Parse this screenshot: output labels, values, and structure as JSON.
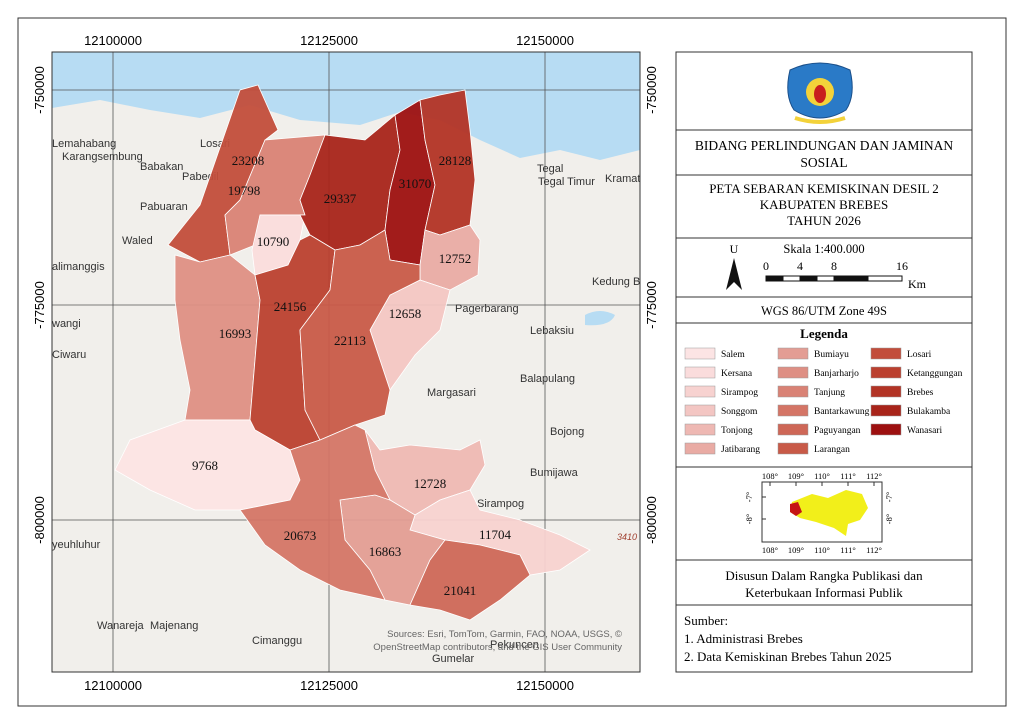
{
  "map": {
    "x_ticks": [
      12100000,
      12125000,
      12150000
    ],
    "y_ticks": [
      -750000,
      -775000,
      -800000
    ],
    "districts": [
      {
        "value": 23208,
        "color": "#c24d3b"
      },
      {
        "value": 19798,
        "color": "#d98275"
      },
      {
        "value": 10790,
        "color": "#fadcdc"
      },
      {
        "value": 29337,
        "color": "#a8241a"
      },
      {
        "value": 31070,
        "color": "#9d1010"
      },
      {
        "value": 28128,
        "color": "#b23325"
      },
      {
        "value": 12752,
        "color": "#e9aba4"
      },
      {
        "value": 12658,
        "color": "#f3c6c3"
      },
      {
        "value": 16993,
        "color": "#de8f84"
      },
      {
        "value": 24156,
        "color": "#bb402f"
      },
      {
        "value": 22113,
        "color": "#c85a48"
      },
      {
        "value": 9768,
        "color": "#fce4e4"
      },
      {
        "value": 12728,
        "color": "#eeb8b3"
      },
      {
        "value": 11704,
        "color": "#f7d2d0"
      },
      {
        "value": 16863,
        "color": "#e39d94"
      },
      {
        "value": 20673,
        "color": "#d47566"
      },
      {
        "value": 21041,
        "color": "#ce6757"
      }
    ],
    "places": [
      "Lemahabang",
      "Karangsembung",
      "Losari",
      "Babakan",
      "Pabedil",
      "Pabuaran",
      "Waled",
      "alimanggis",
      "wangi",
      "Ciwaru",
      "yeuhluhur",
      "Wanareja",
      "Majenang",
      "Cimanggu",
      "Gumelar",
      "Pekuncen",
      "Tegal",
      "Tegal Timur",
      "Kramat",
      "Kedung B",
      "Pagerbarang",
      "Lebaksiu",
      "Margasari",
      "Balapulang",
      "Bojong",
      "Bumijawa",
      "Sirampog",
      "3410 m"
    ],
    "attribution": [
      "Sources: Esri, TomTom, Garmin, FAO, NOAA, USGS, ©",
      "OpenStreetMap contributors, and the GIS User Community"
    ]
  },
  "panel": {
    "agency_lines": [
      "BIDANG PERLINDUNGAN DAN JAMINAN",
      "SOSIAL"
    ],
    "title_lines": [
      "PETA SEBARAN KEMISKINAN DESIL 2",
      "KABUPATEN BREBES",
      "TAHUN 2026"
    ],
    "north": "U",
    "scale": "Skala 1:400.000",
    "scale_ticks": [
      0,
      4,
      8,
      16
    ],
    "scale_unit": "Km",
    "projection": "WGS 86/UTM Zone 49S",
    "legend_title": "Legenda",
    "legend": [
      {
        "name": "Salem",
        "color": "#fce4e4"
      },
      {
        "name": "Kersana",
        "color": "#fadcdc"
      },
      {
        "name": "Sirampog",
        "color": "#f7d2d0"
      },
      {
        "name": "Songgom",
        "color": "#f3c6c3"
      },
      {
        "name": "Tonjong",
        "color": "#eeb8b3"
      },
      {
        "name": "Jatibarang",
        "color": "#e9aba4"
      },
      {
        "name": "Bumiayu",
        "color": "#e39d94"
      },
      {
        "name": "Banjarharjo",
        "color": "#de8f84"
      },
      {
        "name": "Tanjung",
        "color": "#d98275"
      },
      {
        "name": "Bantarkawung",
        "color": "#d47566"
      },
      {
        "name": "Paguyangan",
        "color": "#ce6757"
      },
      {
        "name": "Larangan",
        "color": "#c85a48"
      },
      {
        "name": "Losari",
        "color": "#c24d3b"
      },
      {
        "name": "Ketanggungan",
        "color": "#bb402f"
      },
      {
        "name": "Brebes",
        "color": "#b23325"
      },
      {
        "name": "Bulakamba",
        "color": "#a8241a"
      },
      {
        "name": "Wanasari",
        "color": "#9d1010"
      }
    ],
    "inset_lon": [
      {
        "value": 108,
        "label": "108°"
      },
      {
        "value": 109,
        "label": "109°"
      },
      {
        "value": 110,
        "label": "110°"
      },
      {
        "value": 111,
        "label": "111°"
      },
      {
        "value": 112,
        "label": "112°"
      }
    ],
    "inset_lat": [
      {
        "value": -7,
        "label": "-7°"
      },
      {
        "value": -8,
        "label": "-8°"
      }
    ],
    "credit_lines": [
      "Disusun Dalam Rangka Publikasi dan",
      "Keterbukaan Informasi Publik"
    ],
    "source_title": "Sumber:",
    "sources": [
      "1. Administrasi Brebes",
      "2. Data Kemiskinan Brebes Tahun 2025"
    ]
  }
}
